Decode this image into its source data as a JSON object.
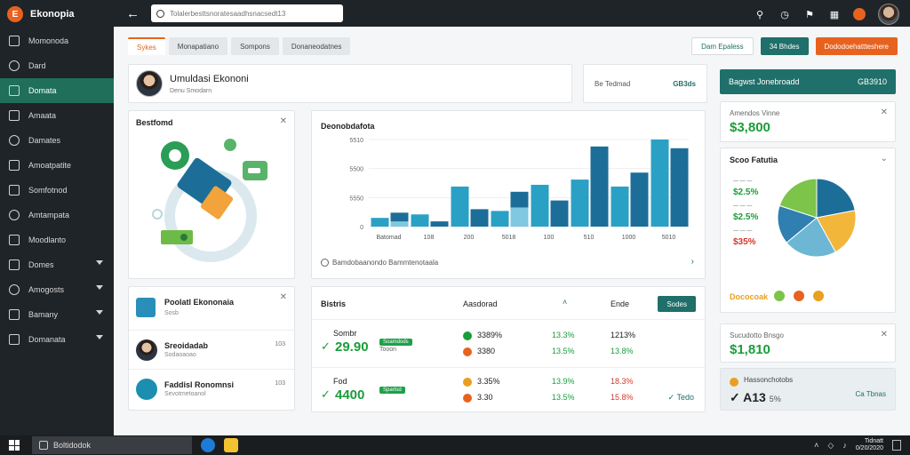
{
  "brand": {
    "name": "Ekonopia",
    "logo": "E"
  },
  "sidebar": {
    "items": [
      {
        "label": "Momonoda",
        "icon": "gauge-icon"
      },
      {
        "label": "Dard",
        "icon": "clock-icon"
      },
      {
        "label": "Domata",
        "icon": "chart-icon",
        "active": true
      },
      {
        "label": "Amaata",
        "icon": "trend-icon"
      },
      {
        "label": "Damates",
        "icon": "calendar-icon"
      },
      {
        "label": "Amoatpatite",
        "icon": "table-icon"
      },
      {
        "label": "Somfotnod",
        "icon": "wallet-icon"
      },
      {
        "label": "Amtampata",
        "icon": "grid-icon"
      },
      {
        "label": "Moodlanto",
        "icon": "settings-icon"
      },
      {
        "label": "Domes",
        "icon": "globe-icon",
        "expand": true
      },
      {
        "label": "Amogosts",
        "icon": "flag-icon",
        "expand": true
      },
      {
        "label": "Bamany",
        "icon": "star-icon",
        "expand": true
      },
      {
        "label": "Domanata",
        "icon": "user-icon",
        "expand": true
      }
    ]
  },
  "topbar": {
    "search_placeholder": "Tolalerbesttsnoratesaadhsnacsedt13",
    "icons": [
      "search-icon",
      "clock-icon",
      "bell-icon",
      "grid-icon",
      "notification-icon",
      "profile-avatar"
    ]
  },
  "tabs": [
    {
      "label": "Sykes",
      "active": true
    },
    {
      "label": "Monapatiano"
    },
    {
      "label": "Sompons"
    },
    {
      "label": "Donaneodatnes"
    }
  ],
  "header_buttons": {
    "ghost": "Dam Epaless",
    "teal": "34 Bhdes",
    "orange": "Dododoehattteshere"
  },
  "profile": {
    "name": "Umuldasi Ekononi",
    "sub": "Denu Smodarn"
  },
  "mini_stat": {
    "label": "Be Tedmad",
    "value": "GB3ds"
  },
  "right_header": {
    "label": "Bagwst Jonebroadd",
    "value": "GB3910"
  },
  "stat_card_1": {
    "label": "Amendos Vinne",
    "value": "$3,800"
  },
  "feature_card": {
    "title": "Bestfomd"
  },
  "chart_card": {
    "title": "Deonobdafota",
    "footer": "Bamdobaanondo Bammtenotaala"
  },
  "chart_data": {
    "type": "bar",
    "categories": [
      "Batomad",
      "108",
      "200",
      "5018",
      "100",
      "510",
      "1000",
      "5010"
    ],
    "series": [
      {
        "values": [
          10,
          14,
          46,
          18,
          48,
          54,
          46,
          100
        ]
      },
      {
        "values": [
          16,
          6,
          20,
          40,
          30,
          92,
          62,
          90
        ]
      },
      {
        "values": [
          6,
          0,
          0,
          22,
          0,
          0,
          0,
          0
        ]
      }
    ],
    "ylabels": [
      "5510",
      "5500",
      "5550",
      "0"
    ],
    "colors": [
      "#2aa1c4",
      "#1c6e98",
      "#80c7e0"
    ]
  },
  "list_card": {
    "title": "Poolatl Ekononaia",
    "sub": "Sosb",
    "rows": [
      {
        "name": "Sreoidadab",
        "sub": "Sodaoaoao",
        "meta": "103"
      },
      {
        "name": "Faddisl Ronomnsi",
        "sub": "Sevotmetoanol",
        "meta": "103"
      }
    ]
  },
  "table_card": {
    "title": "Bistris",
    "headers": [
      "Aasdorad",
      "Ende"
    ],
    "action_label": "Sodes",
    "rows": [
      {
        "label": "Sombr",
        "value": "29.90",
        "badge": "Soamdods",
        "badge_sub": "Tooon",
        "pcts": [
          "3389%",
          "3380"
        ],
        "vals": [
          "13.3%",
          "13.5%"
        ],
        "last": [
          "1213%",
          "13.8%"
        ]
      },
      {
        "label": "Fod",
        "value": "4400",
        "badge": "Spartsd",
        "badge_sub": "",
        "pcts": [
          "3.35%",
          "3.30"
        ],
        "vals": [
          "13.9%",
          "13.5%"
        ],
        "last": [
          "18.3%",
          "15.8%"
        ],
        "tag": "Tedo"
      }
    ]
  },
  "pie_card": {
    "title": "Scoo Fatutia",
    "legend": [
      "$2.5%",
      "$2.5%",
      "$35%"
    ],
    "legend_colors": [
      "#1a9d3a",
      "#1a9d3a",
      "#d23a2a"
    ],
    "slices": [
      {
        "value": 22,
        "color": "#1c6e98"
      },
      {
        "value": 20,
        "color": "#f2b63b"
      },
      {
        "value": 22,
        "color": "#6eb7d4"
      },
      {
        "value": 16,
        "color": "#2f7fb0"
      },
      {
        "value": 20,
        "color": "#7cc44a"
      }
    ],
    "footer": "Dococoak",
    "footer_dots": [
      "#7cc44a",
      "#e8621f",
      "#e8a020"
    ]
  },
  "stat_card_2": {
    "label": "Sucudotto Bnsgo",
    "value": "$1,810"
  },
  "stat_card_3": {
    "label": "Hassonchotobs",
    "value": "A13",
    "suffix": "5%",
    "action": "Ca Tbnas"
  },
  "taskbar": {
    "search": "Boltidodok",
    "time": "Tidnatt",
    "date": "0/20/2020"
  }
}
